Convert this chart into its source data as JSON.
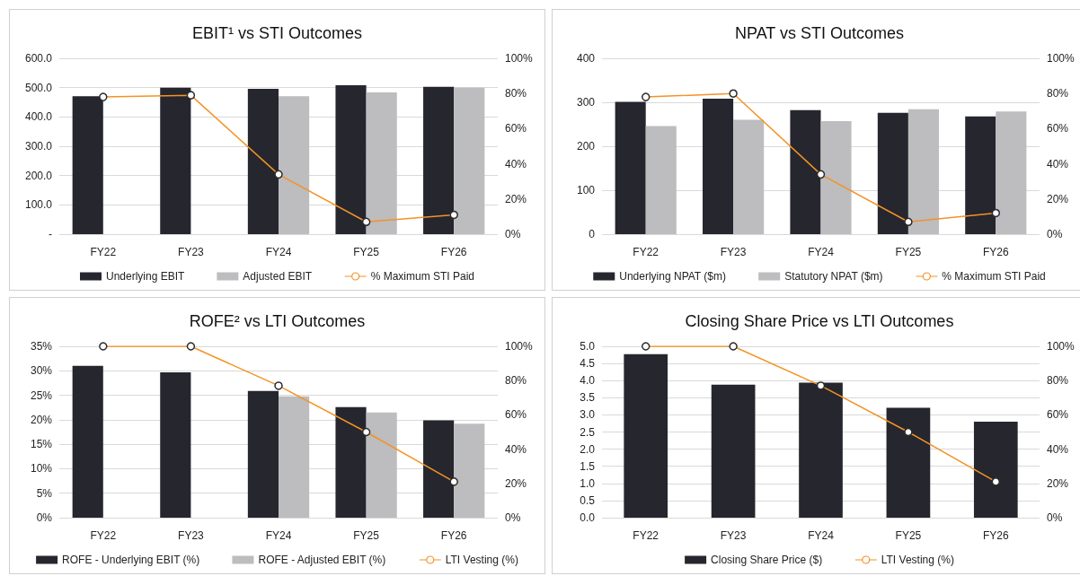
{
  "chart_data": [
    {
      "type": "bar",
      "title": "EBIT¹ vs STI Outcomes",
      "categories": [
        "FY22",
        "FY23",
        "FY24",
        "FY25",
        "FY26"
      ],
      "series": [
        {
          "name": "Underlying EBIT",
          "color": "#26262f",
          "values": [
            471,
            500,
            496,
            508,
            503
          ]
        },
        {
          "name": "Adjusted EBIT",
          "color": "#bdbcbf",
          "values": [
            null,
            null,
            471,
            484,
            500
          ]
        },
        {
          "name": "% Maximum STI Paid",
          "type": "line",
          "axis": "y2",
          "color": "#f39325",
          "values": [
            78,
            79,
            34,
            7,
            11
          ]
        }
      ],
      "ylim": [
        0,
        600
      ],
      "yticks": [
        {
          "value": 0,
          "label": "-"
        },
        {
          "value": 100,
          "label": "100.0"
        },
        {
          "value": 200,
          "label": "200.0"
        },
        {
          "value": 300,
          "label": "300.0"
        },
        {
          "value": 400,
          "label": "400.0"
        },
        {
          "value": 500,
          "label": "500.0"
        },
        {
          "value": 600,
          "label": "600.0"
        }
      ],
      "y2lim": [
        0,
        100
      ],
      "y2ticks": [
        {
          "value": 0,
          "label": "0%"
        },
        {
          "value": 20,
          "label": "20%"
        },
        {
          "value": 40,
          "label": "40%"
        },
        {
          "value": 60,
          "label": "60%"
        },
        {
          "value": 80,
          "label": "80%"
        },
        {
          "value": 100,
          "label": "100%"
        }
      ],
      "grid": "y",
      "legend": "bottom",
      "marker": "circle"
    },
    {
      "type": "bar",
      "title": "NPAT vs STI Outcomes",
      "categories": [
        "FY22",
        "FY23",
        "FY24",
        "FY25",
        "FY26"
      ],
      "series": [
        {
          "name": "Underlying NPAT ($m)",
          "color": "#26262f",
          "values": [
            301,
            308,
            282,
            276,
            268
          ]
        },
        {
          "name": "Statutory NPAT ($m)",
          "color": "#bdbcbf",
          "values": [
            246,
            260,
            257,
            284,
            279
          ]
        },
        {
          "name": "% Maximum STI Paid",
          "type": "line",
          "axis": "y2",
          "color": "#f39325",
          "values": [
            78,
            80,
            34,
            7,
            12
          ]
        }
      ],
      "ylim": [
        0,
        400
      ],
      "yticks": [
        0,
        100,
        200,
        300,
        400
      ],
      "y2lim": [
        0,
        100
      ],
      "y2ticks": [
        {
          "value": 0,
          "label": "0%"
        },
        {
          "value": 20,
          "label": "20%"
        },
        {
          "value": 40,
          "label": "40%"
        },
        {
          "value": 60,
          "label": "60%"
        },
        {
          "value": 80,
          "label": "80%"
        },
        {
          "value": 100,
          "label": "100%"
        }
      ],
      "grid": "y",
      "legend": "bottom",
      "marker": "circle"
    },
    {
      "type": "bar",
      "title": "ROFE² vs LTI Outcomes",
      "categories": [
        "FY22",
        "FY23",
        "FY24",
        "FY25",
        "FY26"
      ],
      "series": [
        {
          "name": "ROFE - Underlying EBIT (%)",
          "color": "#26262f",
          "values": [
            31.0,
            29.7,
            25.9,
            22.6,
            19.9
          ]
        },
        {
          "name": "ROFE - Adjusted EBIT (%)",
          "color": "#bdbcbf",
          "values": [
            null,
            null,
            24.8,
            21.5,
            19.2
          ]
        },
        {
          "name": "LTI Vesting (%)",
          "type": "line",
          "axis": "y2",
          "color": "#f39325",
          "values": [
            100,
            100,
            77,
            50,
            21
          ]
        }
      ],
      "ylim": [
        0,
        35
      ],
      "yticks": [
        {
          "value": 0,
          "label": "0%"
        },
        {
          "value": 5,
          "label": "5%"
        },
        {
          "value": 10,
          "label": "10%"
        },
        {
          "value": 15,
          "label": "15%"
        },
        {
          "value": 20,
          "label": "20%"
        },
        {
          "value": 25,
          "label": "25%"
        },
        {
          "value": 30,
          "label": "30%"
        },
        {
          "value": 35,
          "label": "35%"
        }
      ],
      "y2lim": [
        0,
        100
      ],
      "y2ticks": [
        {
          "value": 0,
          "label": "0%"
        },
        {
          "value": 20,
          "label": "20%"
        },
        {
          "value": 40,
          "label": "40%"
        },
        {
          "value": 60,
          "label": "60%"
        },
        {
          "value": 80,
          "label": "80%"
        },
        {
          "value": 100,
          "label": "100%"
        }
      ],
      "grid": "y",
      "legend": "bottom",
      "marker": "circle"
    },
    {
      "type": "bar",
      "title": "Closing Share Price vs LTI Outcomes",
      "categories": [
        "FY22",
        "FY23",
        "FY24",
        "FY25",
        "FY26"
      ],
      "series": [
        {
          "name": "Closing Share Price ($)",
          "color": "#26262f",
          "values": [
            4.77,
            3.88,
            3.94,
            3.21,
            2.8
          ]
        },
        {
          "name": "LTI Vesting (%)",
          "type": "line",
          "axis": "y2",
          "color": "#f39325",
          "values": [
            100,
            100,
            77,
            50,
            21
          ]
        }
      ],
      "ylim": [
        0,
        5
      ],
      "yticks": [
        {
          "value": 0,
          "label": "0.0"
        },
        {
          "value": 0.5,
          "label": "0.5"
        },
        {
          "value": 1,
          "label": "1.0"
        },
        {
          "value": 1.5,
          "label": "1.5"
        },
        {
          "value": 2,
          "label": "2.0"
        },
        {
          "value": 2.5,
          "label": "2.5"
        },
        {
          "value": 3,
          "label": "3.0"
        },
        {
          "value": 3.5,
          "label": "3.5"
        },
        {
          "value": 4,
          "label": "4.0"
        },
        {
          "value": 4.5,
          "label": "4.5"
        },
        {
          "value": 5,
          "label": "5.0"
        }
      ],
      "y2lim": [
        0,
        100
      ],
      "y2ticks": [
        {
          "value": 0,
          "label": "0%"
        },
        {
          "value": 20,
          "label": "20%"
        },
        {
          "value": 40,
          "label": "40%"
        },
        {
          "value": 60,
          "label": "60%"
        },
        {
          "value": 80,
          "label": "80%"
        },
        {
          "value": 100,
          "label": "100%"
        }
      ],
      "grid": "y",
      "legend": "bottom",
      "marker": "circle"
    }
  ]
}
